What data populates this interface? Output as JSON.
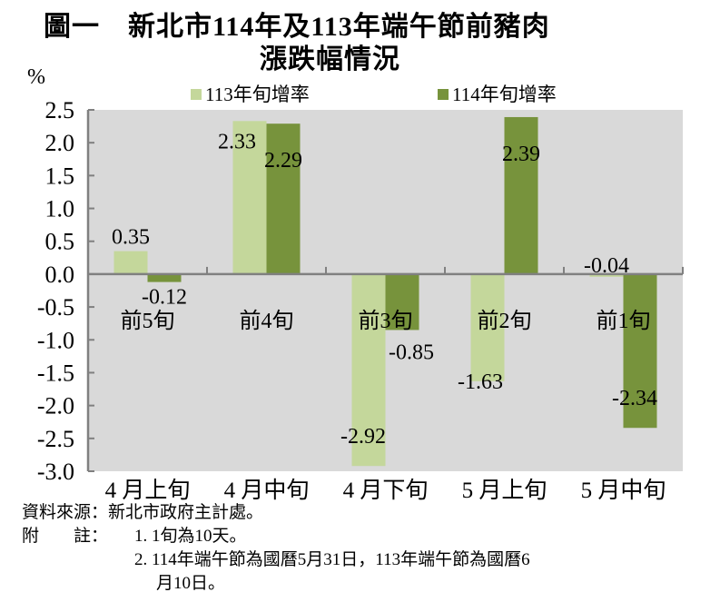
{
  "title_line1": "圖一　新北市114年及113年端午節前豬肉",
  "title_line2": "漲跌幅情況",
  "chart_data": {
    "type": "bar",
    "ylabel": "%",
    "ylim": [
      -3.0,
      2.5
    ],
    "yticks": [
      "2.5",
      "2.0",
      "1.5",
      "1.0",
      "0.5",
      "0.0",
      "-0.5",
      "-1.0",
      "-1.5",
      "-2.0",
      "-2.5",
      "-3.0"
    ],
    "categories": [
      "4 月上旬",
      "4 月中旬",
      "4 月下旬",
      "5 月上旬",
      "5 月中旬"
    ],
    "inner_labels": [
      "前5旬",
      "前4旬",
      "前3旬",
      "前2旬",
      "前1旬"
    ],
    "legend_position": "top",
    "grid": false,
    "series": [
      {
        "name": "113年旬增率",
        "color": "#c4d79b",
        "values": [
          0.35,
          2.33,
          -2.92,
          -1.63,
          -0.04
        ]
      },
      {
        "name": "114年旬增率",
        "color": "#77933c",
        "values": [
          -0.12,
          2.29,
          -0.85,
          2.39,
          -2.34
        ]
      }
    ],
    "plot_background": "#d9d9d9"
  },
  "notes": {
    "source": "資料來源：新北市政府主計處。",
    "note_label": "附　　註：",
    "note1": "1. 1旬為10天。",
    "note2a": "2. 114年端午節為國曆5月31日，113年端午節為國曆6",
    "note2b": "月10日。"
  }
}
